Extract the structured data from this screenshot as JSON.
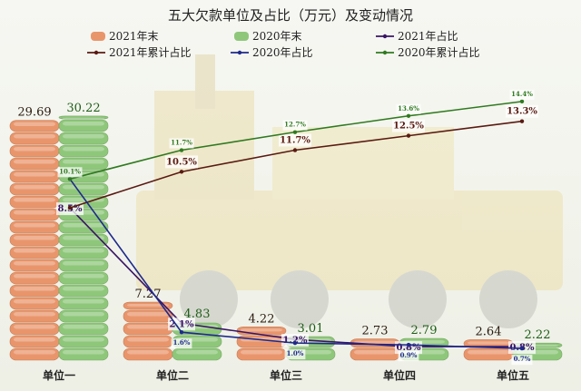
{
  "chart_data": {
    "type": "bar",
    "title": "五大欠款单位及占比（万元）及变动情况",
    "categories": [
      "单位一",
      "单位二",
      "单位三",
      "单位四",
      "单位五"
    ],
    "series": [
      {
        "name": "2021年末",
        "kind": "bar",
        "values": [
          29.69,
          7.27,
          4.22,
          2.73,
          2.64
        ],
        "labels": [
          "29.69",
          "7.27",
          "4.22",
          "2.73",
          "2.64"
        ],
        "color": "#e9956b"
      },
      {
        "name": "2020年末",
        "kind": "bar",
        "values": [
          30.22,
          4.83,
          3.01,
          2.79,
          2.22
        ],
        "labels": [
          "30.22",
          "4.83",
          "3.01",
          "2.79",
          "2.22"
        ],
        "color": "#8ec77a"
      },
      {
        "name": "2021年占比",
        "kind": "line",
        "axis": "secondary",
        "values": [
          8.5,
          2.1,
          1.2,
          0.8,
          0.8
        ],
        "labels": [
          "8.5%",
          "2.1%",
          "1.2%",
          "0.8%",
          "0.8%"
        ],
        "color": "#3a1466"
      },
      {
        "name": "2021年累计占比",
        "kind": "line",
        "axis": "secondary",
        "values": [
          8.5,
          10.5,
          11.7,
          12.5,
          13.3
        ],
        "labels": [
          "",
          "10.5%",
          "11.7%",
          "12.5%",
          "13.3%"
        ],
        "color": "#5a1a12"
      },
      {
        "name": "2020年占比",
        "kind": "line",
        "axis": "secondary",
        "values": [
          10.1,
          1.6,
          1.0,
          0.9,
          0.7
        ],
        "labels": [
          "",
          "1.6%",
          "1.0%",
          "0.9%",
          "0.7%"
        ],
        "color": "#1e2a8c"
      },
      {
        "name": "2020年累计占比",
        "kind": "line",
        "axis": "secondary",
        "values": [
          10.1,
          11.7,
          12.7,
          13.6,
          14.4
        ],
        "labels": [
          "10.1%",
          "11.7%",
          "12.7%",
          "13.6%",
          "14.4%"
        ],
        "color": "#2f7a1f"
      }
    ],
    "ylim": [
      0,
      32
    ],
    "y2lim": [
      0,
      15.5
    ],
    "legend_position": "top",
    "grid": false
  },
  "legend_order": [
    0,
    1,
    2,
    3,
    4,
    5
  ]
}
